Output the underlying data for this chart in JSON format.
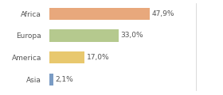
{
  "categories": [
    "Africa",
    "Europa",
    "America",
    "Asia"
  ],
  "values": [
    47.9,
    33.0,
    17.0,
    2.1
  ],
  "labels": [
    "47,9%",
    "33,0%",
    "17,0%",
    "2,1%"
  ],
  "bar_colors": [
    "#e8a87c",
    "#b5c98e",
    "#e8c86e",
    "#7a9cc4"
  ],
  "background_color": "#ffffff",
  "xlim": [
    0,
    70
  ],
  "label_fontsize": 6.5,
  "category_fontsize": 6.5,
  "bar_height": 0.55
}
